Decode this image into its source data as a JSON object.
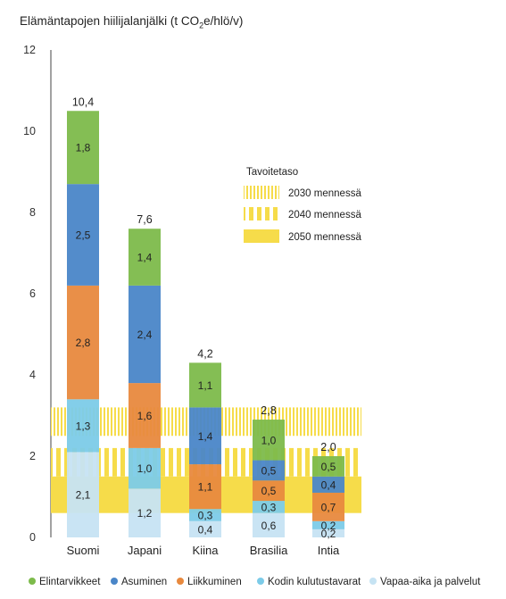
{
  "chart_data": {
    "type": "bar",
    "stacked": true,
    "title": {
      "main": "Elämäntapojen hiilijalanjälki (t CO",
      "sub": "2",
      "tail": "e/hlö/v)"
    },
    "ylim": [
      0,
      12
    ],
    "yticks": [
      "0",
      "2",
      "4",
      "6",
      "8",
      "10",
      "12"
    ],
    "categories": [
      "Suomi",
      "Japani",
      "Kiina",
      "Brasilia",
      "Intia"
    ],
    "totals": [
      "10,4",
      "7,6",
      "4,2",
      "2,8",
      "2,0"
    ],
    "series": [
      {
        "name": "Vapaa-aika ja palvelut",
        "color": "#c6e3f3",
        "values": [
          2.1,
          1.2,
          0.4,
          0.6,
          0.2
        ],
        "labels": [
          "2,1",
          "1,2",
          "0,4",
          "0,6",
          "0,2"
        ]
      },
      {
        "name": "Kodin kulutustavarat",
        "color": "#7ccbe8",
        "values": [
          1.3,
          1.0,
          0.3,
          0.3,
          0.2
        ],
        "labels": [
          "1,3",
          "1,0",
          "0,3",
          "0,3",
          "0,2"
        ]
      },
      {
        "name": "Liikkuminen",
        "color": "#e8893e",
        "values": [
          2.8,
          1.6,
          1.1,
          0.5,
          0.7
        ],
        "labels": [
          "2,8",
          "1,6",
          "1,1",
          "0,5",
          "0,7"
        ]
      },
      {
        "name": "Asuminen",
        "color": "#4a86c8",
        "values": [
          2.5,
          2.4,
          1.4,
          0.5,
          0.4
        ],
        "labels": [
          "2,5",
          "2,4",
          "1,4",
          "0,5",
          "0,4"
        ]
      },
      {
        "name": "Elintarvikkeet",
        "color": "#7dbb4b",
        "values": [
          1.8,
          1.4,
          1.1,
          1.0,
          0.5
        ],
        "labels": [
          "1,8",
          "1,4",
          "1,1",
          "1,0",
          "0,5"
        ]
      }
    ],
    "legend_order": [
      "Elintarvikkeet",
      "Asuminen",
      "Liikkuminen",
      "Kodin kulutustavarat",
      "Vapaa-aika ja palvelut"
    ],
    "targets": {
      "title": "Tavoitetaso",
      "color": "#f6dc4a",
      "bands": [
        {
          "label": "2030 mennessä",
          "range": [
            2.5,
            3.2
          ],
          "pattern": "fine-stripes"
        },
        {
          "label": "2040 mennessä",
          "range": [
            1.5,
            2.2
          ],
          "pattern": "wide-stripes"
        },
        {
          "label": "2050 mennessä",
          "range": [
            0.6,
            1.5
          ],
          "pattern": "solid"
        }
      ]
    }
  }
}
